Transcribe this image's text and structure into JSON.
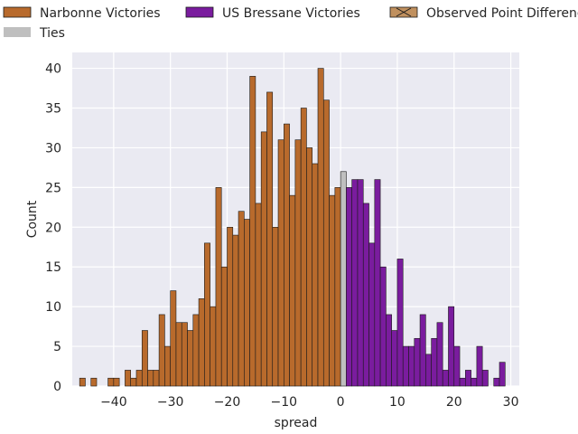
{
  "chart_data": {
    "type": "bar",
    "xlabel": "spread",
    "ylabel": "Count",
    "xlim": [
      -47.3,
      31.5
    ],
    "ylim": [
      0,
      42
    ],
    "grid": true,
    "x_ticks": [
      -40,
      -30,
      -20,
      -10,
      0,
      10,
      20,
      30
    ],
    "y_ticks": [
      0,
      5,
      10,
      15,
      20,
      25,
      30,
      35,
      40
    ],
    "bin_width": 1,
    "legend": {
      "placement": "top",
      "entries": [
        {
          "label": "Narbonne Victories",
          "color": "#b86a2c"
        },
        {
          "label": "US Bressane Victories",
          "color": "#7a1c9e"
        },
        {
          "label": "Observed Point Difference",
          "color": "#c0905e"
        },
        {
          "label": "Ties",
          "color": "#bfbfbf"
        }
      ]
    },
    "series": [
      {
        "name": "Narbonne Victories",
        "color": "#b86a2c",
        "bins": [
          {
            "x": -46,
            "count": 1
          },
          {
            "x": -44,
            "count": 1
          },
          {
            "x": -41,
            "count": 1
          },
          {
            "x": -40,
            "count": 1
          },
          {
            "x": -38,
            "count": 2
          },
          {
            "x": -37,
            "count": 1
          },
          {
            "x": -36,
            "count": 2
          },
          {
            "x": -35,
            "count": 7
          },
          {
            "x": -34,
            "count": 2
          },
          {
            "x": -33,
            "count": 2
          },
          {
            "x": -32,
            "count": 9
          },
          {
            "x": -31,
            "count": 5
          },
          {
            "x": -30,
            "count": 12
          },
          {
            "x": -29,
            "count": 8
          },
          {
            "x": -28,
            "count": 8
          },
          {
            "x": -27,
            "count": 7
          },
          {
            "x": -26,
            "count": 9
          },
          {
            "x": -25,
            "count": 11
          },
          {
            "x": -24,
            "count": 18
          },
          {
            "x": -23,
            "count": 10
          },
          {
            "x": -22,
            "count": 25
          },
          {
            "x": -21,
            "count": 15
          },
          {
            "x": -20,
            "count": 20
          },
          {
            "x": -19,
            "count": 19
          },
          {
            "x": -18,
            "count": 22
          },
          {
            "x": -17,
            "count": 21
          },
          {
            "x": -16,
            "count": 39
          },
          {
            "x": -15,
            "count": 23
          },
          {
            "x": -14,
            "count": 32
          },
          {
            "x": -13,
            "count": 37
          },
          {
            "x": -12,
            "count": 20
          },
          {
            "x": -11,
            "count": 31
          },
          {
            "x": -10,
            "count": 33
          },
          {
            "x": -9,
            "count": 24
          },
          {
            "x": -8,
            "count": 31
          },
          {
            "x": -7,
            "count": 35
          },
          {
            "x": -6,
            "count": 30
          },
          {
            "x": -5,
            "count": 28
          },
          {
            "x": -4,
            "count": 40
          },
          {
            "x": -3,
            "count": 36
          },
          {
            "x": -2,
            "count": 24
          },
          {
            "x": -1,
            "count": 25
          }
        ]
      },
      {
        "name": "Ties",
        "color": "#bfbfbf",
        "bins": [
          {
            "x": 0,
            "count": 27
          }
        ]
      },
      {
        "name": "US Bressane Victories",
        "color": "#7a1c9e",
        "bins": [
          {
            "x": 1,
            "count": 25
          },
          {
            "x": 2,
            "count": 26
          },
          {
            "x": 3,
            "count": 26
          },
          {
            "x": 4,
            "count": 23
          },
          {
            "x": 5,
            "count": 18
          },
          {
            "x": 6,
            "count": 26
          },
          {
            "x": 7,
            "count": 15
          },
          {
            "x": 8,
            "count": 9
          },
          {
            "x": 9,
            "count": 7
          },
          {
            "x": 10,
            "count": 16
          },
          {
            "x": 11,
            "count": 5
          },
          {
            "x": 12,
            "count": 5
          },
          {
            "x": 13,
            "count": 6
          },
          {
            "x": 14,
            "count": 9
          },
          {
            "x": 15,
            "count": 4
          },
          {
            "x": 16,
            "count": 6
          },
          {
            "x": 17,
            "count": 8
          },
          {
            "x": 18,
            "count": 2
          },
          {
            "x": 19,
            "count": 10
          },
          {
            "x": 20,
            "count": 5
          },
          {
            "x": 21,
            "count": 1
          },
          {
            "x": 22,
            "count": 2
          },
          {
            "x": 23,
            "count": 1
          },
          {
            "x": 24,
            "count": 5
          },
          {
            "x": 25,
            "count": 2
          },
          {
            "x": 27,
            "count": 1
          },
          {
            "x": 28,
            "count": 3
          }
        ]
      }
    ]
  }
}
